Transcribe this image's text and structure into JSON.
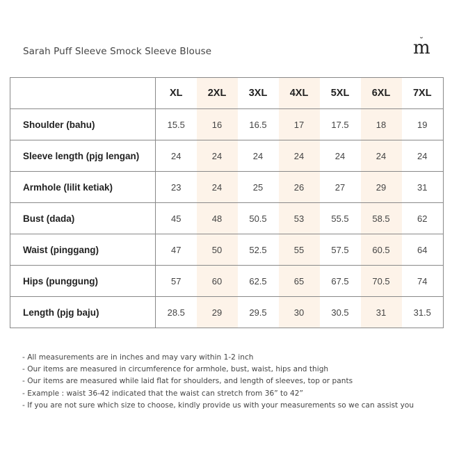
{
  "title": "Sarah Puff Sleeve Smock Sleeve Blouse",
  "logo": {
    "text": "m",
    "icon": "brand-logo-m"
  },
  "table": {
    "sizes": [
      "XL",
      "2XL",
      "3XL",
      "4XL",
      "5XL",
      "6XL",
      "7XL"
    ],
    "rows": [
      {
        "label": "Shoulder (bahu)",
        "values": [
          "15.5",
          "16",
          "16.5",
          "17",
          "17.5",
          "18",
          "19"
        ]
      },
      {
        "label": "Sleeve length (pjg lengan)",
        "values": [
          "24",
          "24",
          "24",
          "24",
          "24",
          "24",
          "24"
        ]
      },
      {
        "label": "Armhole (lilit ketiak)",
        "values": [
          "23",
          "24",
          "25",
          "26",
          "27",
          "29",
          "31"
        ]
      },
      {
        "label": "Bust (dada)",
        "values": [
          "45",
          "48",
          "50.5",
          "53",
          "55.5",
          "58.5",
          "62"
        ]
      },
      {
        "label": "Waist (pinggang)",
        "values": [
          "47",
          "50",
          "52.5",
          "55",
          "57.5",
          "60.5",
          "64"
        ]
      },
      {
        "label": "Hips (punggung)",
        "values": [
          "57",
          "60",
          "62.5",
          "65",
          "67.5",
          "70.5",
          "74"
        ]
      },
      {
        "label": "Length (pjg baju)",
        "values": [
          "28.5",
          "29",
          "29.5",
          "30",
          "30.5",
          "31",
          "31.5"
        ]
      }
    ],
    "shade_color": "#fdf3e9"
  },
  "notes": [
    "- All measurements are in inches and may vary within 1-2 inch",
    "- Our items are measured in circumference for armhole, bust, waist, hips and thigh",
    "- Our items are measured while laid flat for shoulders, and length of sleeves, top or pants",
    "- Example : waist 36-42 indicated that the waist can stretch from 36” to 42”",
    "- If you are not sure which size to choose, kindly provide us with your measurements so we can assist you"
  ]
}
